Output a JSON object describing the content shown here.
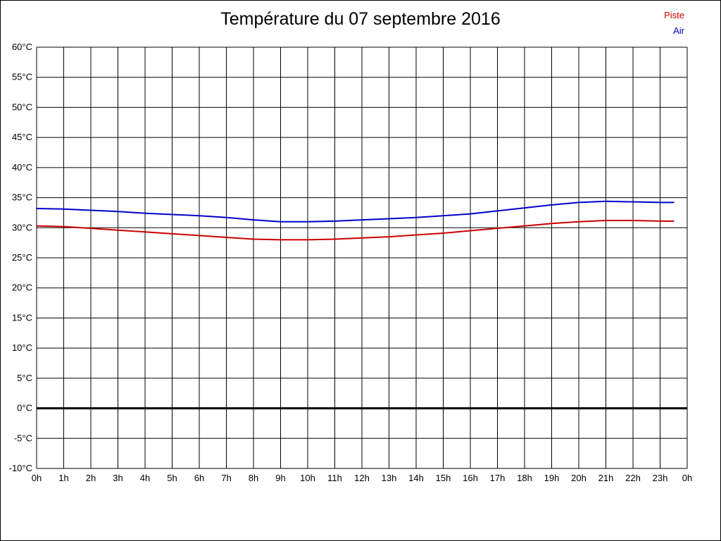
{
  "page": {
    "title": "Température du 07 septembre 2016"
  },
  "chart_data": {
    "type": "line",
    "title": "Température du 07 septembre 2016",
    "xlabel": "",
    "ylabel": "",
    "xlim": [
      0,
      24
    ],
    "ylim": [
      -10,
      60
    ],
    "grid": true,
    "grid_color": "#000000",
    "legend_position": "top-right",
    "x_ticks": [
      0,
      1,
      2,
      3,
      4,
      5,
      6,
      7,
      8,
      9,
      10,
      11,
      12,
      13,
      14,
      15,
      16,
      17,
      18,
      19,
      20,
      21,
      22,
      23,
      24
    ],
    "x_tick_labels": [
      "0h",
      "1h",
      "2h",
      "3h",
      "4h",
      "5h",
      "6h",
      "7h",
      "8h",
      "9h",
      "10h",
      "11h",
      "12h",
      "13h",
      "14h",
      "15h",
      "16h",
      "17h",
      "18h",
      "19h",
      "20h",
      "21h",
      "22h",
      "23h",
      "0h"
    ],
    "y_ticks": [
      60,
      55,
      50,
      45,
      40,
      35,
      30,
      25,
      20,
      15,
      10,
      5,
      0,
      -5,
      -10
    ],
    "y_tick_labels": [
      "60°C",
      "55°C",
      "50°C",
      "45°C",
      "40°C",
      "35°C",
      "30°C",
      "25°C",
      "20°C",
      "15°C",
      "10°C",
      "5°C",
      "0°C",
      "-5°C",
      "-10°C"
    ],
    "zero_line": {
      "value": 0,
      "color": "#000000",
      "width": 3
    },
    "x_hours": [
      0,
      1,
      2,
      3,
      4,
      5,
      6,
      7,
      8,
      9,
      10,
      11,
      12,
      13,
      14,
      15,
      16,
      17,
      18,
      19,
      20,
      21,
      22,
      23,
      23.5
    ],
    "series": [
      {
        "name": "Piste",
        "color": "#cc0000",
        "values": [
          30.3,
          30.2,
          29.9,
          29.6,
          29.3,
          29.0,
          28.7,
          28.4,
          28.1,
          28.0,
          28.0,
          28.1,
          28.3,
          28.5,
          28.8,
          29.1,
          29.5,
          29.9,
          30.3,
          30.7,
          31.0,
          31.2,
          31.2,
          31.1,
          31.1
        ]
      },
      {
        "name": "Air",
        "color": "#0000cc",
        "values": [
          33.2,
          33.1,
          32.9,
          32.7,
          32.4,
          32.2,
          32.0,
          31.7,
          31.3,
          31.0,
          31.0,
          31.1,
          31.3,
          31.5,
          31.7,
          32.0,
          32.3,
          32.8,
          33.3,
          33.8,
          34.2,
          34.4,
          34.3,
          34.2,
          34.2
        ]
      }
    ]
  }
}
